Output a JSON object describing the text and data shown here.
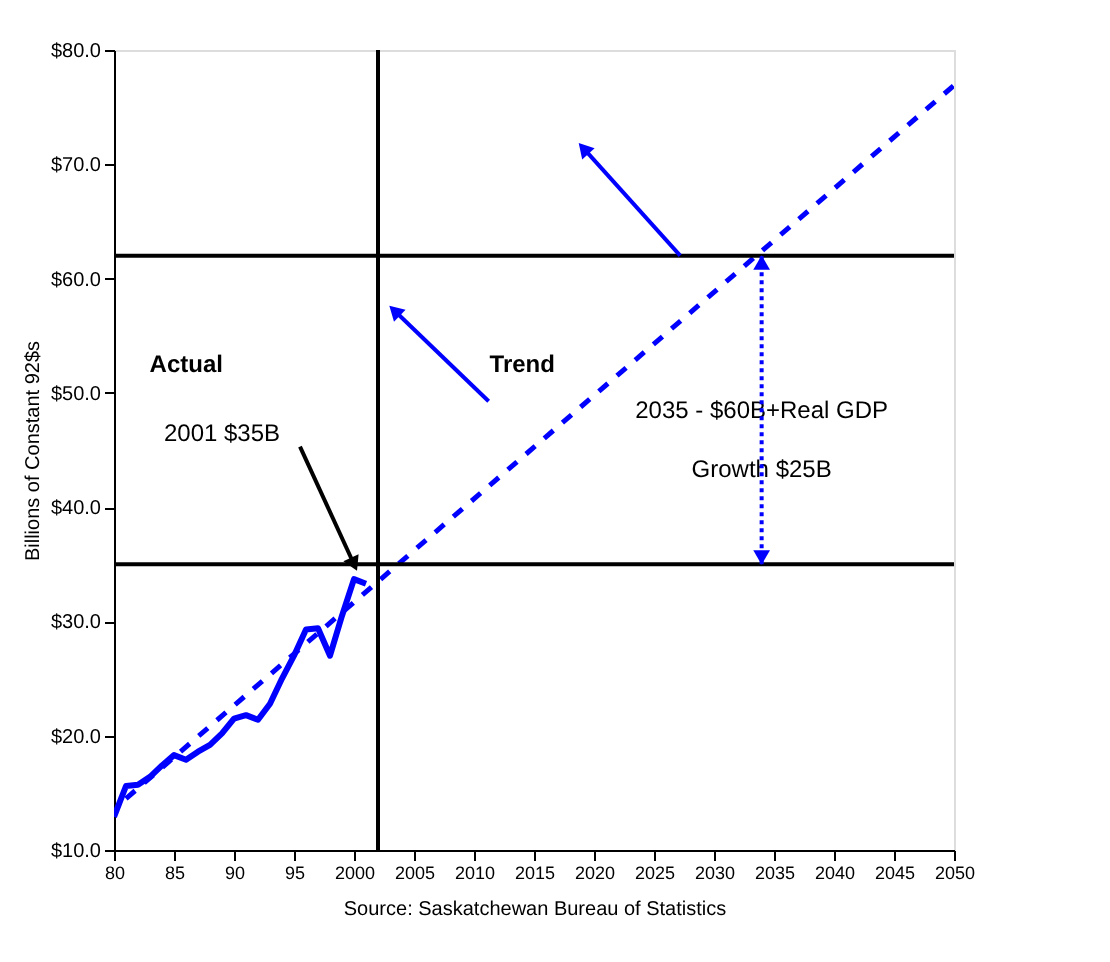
{
  "chart_data": {
    "type": "line",
    "xlabel": "Source: Saskatchewan Bureau of Statistics",
    "ylabel": "Billions of Constant 92$s",
    "xlim": [
      1980,
      2050
    ],
    "xticks": [
      {
        "value": 1980,
        "label": "80"
      },
      {
        "value": 1985,
        "label": "85"
      },
      {
        "value": 1990,
        "label": "90"
      },
      {
        "value": 1995,
        "label": "95"
      },
      2000,
      2005,
      2010,
      2015,
      2020,
      2025,
      2030,
      2035,
      2040,
      2045,
      2050
    ],
    "ylim": [
      10,
      80
    ],
    "yticks": [
      {
        "value": 10,
        "label": "$10.0"
      },
      {
        "value": 20,
        "label": "$20.0"
      },
      {
        "value": 30,
        "label": "$30.0"
      },
      {
        "value": 40,
        "label": "$40.0"
      },
      {
        "value": 50,
        "label": "$50.0"
      },
      {
        "value": 60,
        "label": "$60.0"
      },
      {
        "value": 70,
        "label": "$70.0"
      },
      {
        "value": 80,
        "label": "$80.0"
      }
    ],
    "series": [
      {
        "color": "#0000ff",
        "line_style": "solid",
        "x": [
          1980,
          1981,
          1982,
          1983,
          1984,
          1985,
          1986,
          1987,
          1988,
          1989,
          1990,
          1991,
          1992,
          1993,
          1994,
          1995,
          1996,
          1997,
          1998,
          1999,
          2000,
          2001
        ],
        "values": [
          12.9,
          15.6,
          15.7,
          16.4,
          17.4,
          18.3,
          17.9,
          18.6,
          19.2,
          20.2,
          21.5,
          21.8,
          21.4,
          22.8,
          25.0,
          27.0,
          29.3,
          29.4,
          27.0,
          30.5,
          33.7,
          33.3
        ]
      },
      {
        "color": "#0000ff",
        "line_style": "dashed",
        "x": [
          1981,
          2050
        ],
        "values": [
          14.5,
          76.9
        ]
      }
    ],
    "ref_lines": [
      {
        "axis": "y",
        "value": 35,
        "color": "#000000"
      },
      {
        "axis": "y",
        "value": 62,
        "color": "#000000"
      },
      {
        "axis": "x",
        "value": 2002,
        "color": "#000000"
      }
    ],
    "annotations": [
      "Actual",
      "Trend",
      {
        "text": "2001 $35B",
        "x": 2000,
        "y": 35
      },
      "2035 - $60B+Real GDP",
      "Growth $25B"
    ],
    "grid": false
  }
}
